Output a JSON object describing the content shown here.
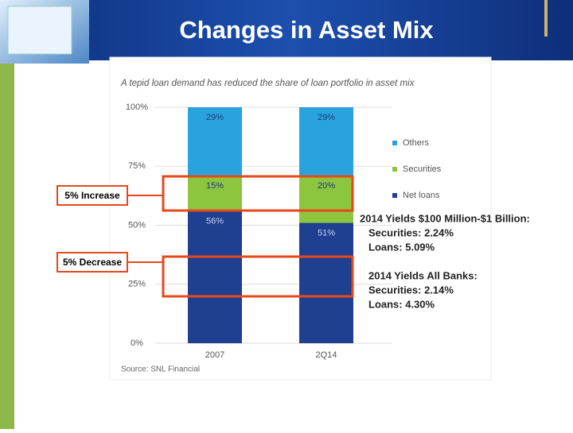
{
  "slide": {
    "title": "Changes in Asset Mix",
    "callouts": [
      "5% Increase",
      "5% Decrease"
    ],
    "notes": [
      [
        "2014 Yields $100 Million-$1 Billion:",
        "Securities:  2.24%",
        "Loans:        5.09%"
      ],
      [
        "2014 Yields All Banks:",
        "Securities:  2.14%",
        "Loans:          4.30%"
      ]
    ]
  },
  "chart_data": {
    "type": "stacked_bar",
    "title": "A tepid loan demand has reduced the share of loan portfolio in asset mix",
    "source": "Source: SNL Financial",
    "categories": [
      "2007",
      "2Q14"
    ],
    "series": [
      {
        "name": "Net loans",
        "color": "#1f3f91",
        "values": [
          56,
          51
        ],
        "value_labels": [
          "56%",
          "51%"
        ]
      },
      {
        "name": "Securities",
        "color": "#8cc63f",
        "values": [
          15,
          20
        ],
        "value_labels": [
          "15%",
          "20%"
        ]
      },
      {
        "name": "Others",
        "color": "#2aa3dd",
        "values": [
          29,
          29
        ],
        "value_labels": [
          "29%",
          "29%"
        ]
      }
    ],
    "ylim": [
      0,
      100
    ],
    "yticks": [
      {
        "value": 0,
        "label": "0%"
      },
      {
        "value": 25,
        "label": "25%"
      },
      {
        "value": 50,
        "label": "50%"
      },
      {
        "value": 75,
        "label": "75%"
      },
      {
        "value": 100,
        "label": "100%"
      }
    ],
    "grid": true,
    "legend": "right"
  }
}
